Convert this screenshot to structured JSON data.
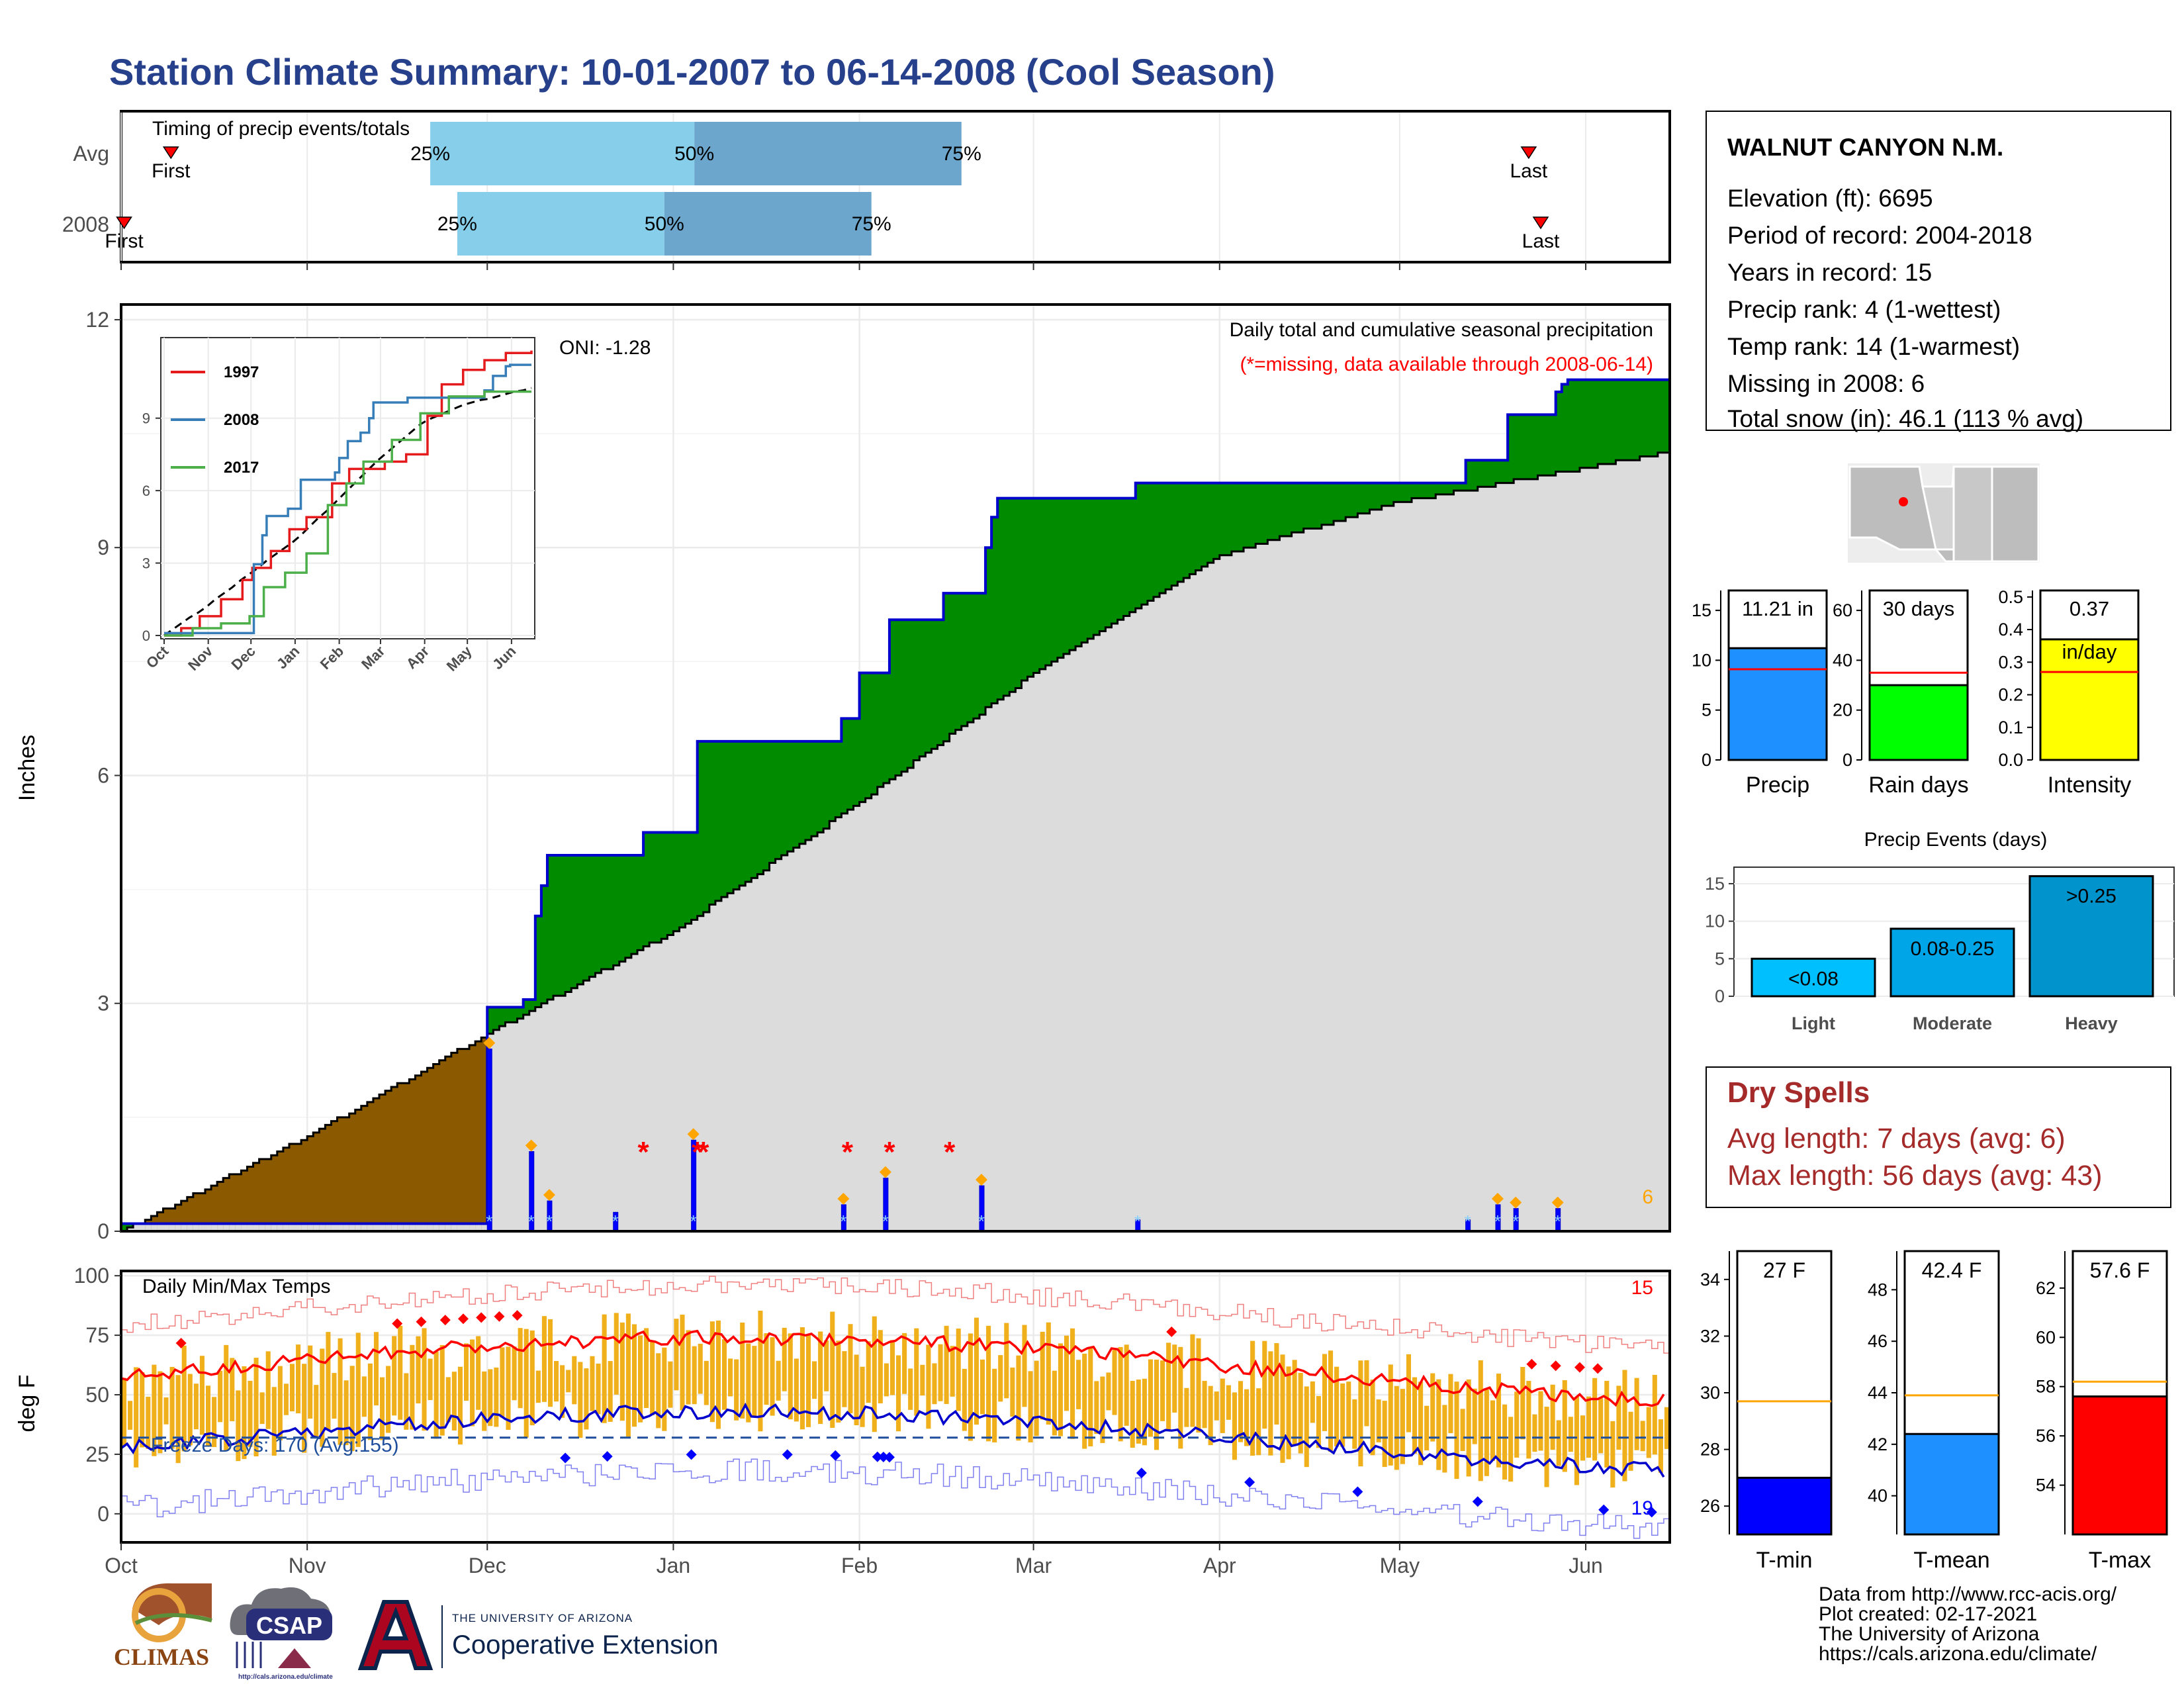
{
  "title": "Station Climate Summary: 10-01-2007 to 06-14-2008 (Cool Season)",
  "timing": {
    "caption": "Timing of precip events/totals",
    "rows": [
      {
        "label": "Avg",
        "first_label": "First",
        "last_label": "Last",
        "first": 8.3,
        "last": 234.5,
        "p25": 51.5,
        "p50": 95.5,
        "p75": 140.0,
        "p25_label": "25%",
        "p50_label": "50%",
        "p75_label": "75%"
      },
      {
        "label": "2008",
        "first_label": "First",
        "last_label": "Last",
        "first": 0.5,
        "last": 236.5,
        "p25": 56.0,
        "p50": 90.5,
        "p75": 125.0,
        "p25_label": "25%",
        "p50_label": "50%",
        "p75_label": "75%"
      }
    ]
  },
  "precip_panel": {
    "ylabel": "Inches",
    "yticks": [
      "0",
      "3",
      "6",
      "9",
      "12"
    ],
    "caption": "Daily total and cumulative seasonal precipitation",
    "missing_note": "(*=missing, data available through 2008-06-14)",
    "oni": "ONI: -1.28",
    "missing_count": "6",
    "colors": {
      "current": "#0000CD",
      "surplus": "#008B00",
      "deficit": "#8B5A00",
      "normal": "#DCDCDC"
    }
  },
  "inset": {
    "legend": [
      "1997",
      "2008",
      "2017"
    ],
    "colors": [
      "#E41A1C",
      "#377EB8",
      "#4DAF4A"
    ],
    "yticks": [
      "0",
      "3",
      "6",
      "9"
    ],
    "xticks": [
      "Oct",
      "Nov",
      "Dec",
      "Jan",
      "Feb",
      "Mar",
      "Apr",
      "May",
      "Jun"
    ]
  },
  "temp_panel": {
    "ylabel": "deg F",
    "caption": "Daily Min/Max Temps",
    "freeze": "Freeze Days: 170 (Avg:155)",
    "yticks": [
      "0",
      "25",
      "50",
      "75",
      "100"
    ],
    "record_high_count": "15",
    "record_low_count": "19"
  },
  "months": [
    "Oct",
    "Nov",
    "Dec",
    "Jan",
    "Feb",
    "Mar",
    "Apr",
    "May",
    "Jun"
  ],
  "station": {
    "name": "WALNUT CANYON N.M.",
    "lines": [
      "Elevation (ft): 6695",
      "Period of record: 2004-2018",
      "Years in record: 15",
      "Precip rank: 4 (1-wettest)",
      "Temp rank: 14 (1-warmest)",
      "Missing in 2008: 6",
      "Total snow (in): 46.1 (113 % avg)"
    ]
  },
  "summary_bars": [
    {
      "label": "Precip",
      "value_label": "11.21 in",
      "value": 11.21,
      "avg": 9.1,
      "ymax": 17,
      "yticks": [
        "0",
        "5",
        "10",
        "15"
      ],
      "color": "#1E90FF"
    },
    {
      "label": "Rain days",
      "value_label": "30 days",
      "value": 30,
      "avg": 35,
      "ymax": 68,
      "yticks": [
        "0",
        "20",
        "40",
        "60"
      ],
      "color": "#00FF00"
    },
    {
      "label": "Intensity",
      "value_label": "0.37",
      "value_label2": "in/day",
      "value": 0.37,
      "avg": 0.27,
      "ymax": 0.52,
      "yticks": [
        "0.0",
        "0.1",
        "0.2",
        "0.3",
        "0.4",
        "0.5"
      ],
      "color": "#FFFF00"
    }
  ],
  "precip_events": {
    "title": "Precip Events (days)",
    "yticks": [
      "0",
      "5",
      "10",
      "15"
    ],
    "bars": [
      {
        "label": "Light",
        "value_label": "<0.08",
        "value": 5,
        "color": "#00BFFF"
      },
      {
        "label": "Moderate",
        "value_label": "0.08-0.25",
        "value": 9,
        "color": "#00A5E8"
      },
      {
        "label": "Heavy",
        "value_label": ">0.25",
        "value": 16,
        "color": "#0093CC"
      }
    ]
  },
  "dry_spells": {
    "title": "Dry Spells",
    "avg_line": "Avg length: 7 days (avg: 6)",
    "max_line": "Max length: 56 days (avg: 43)",
    "color": "#A52A2A"
  },
  "temp_bars": [
    {
      "label": "T-min",
      "value_label": "27 F",
      "value": 27,
      "avg": 29.7,
      "ymin": 25,
      "ymax": 35,
      "yticks": [
        "26",
        "28",
        "30",
        "32",
        "34"
      ],
      "color": "#0000FF"
    },
    {
      "label": "T-mean",
      "value_label": "42.4 F",
      "value": 42.4,
      "avg": 43.9,
      "ymin": 38.5,
      "ymax": 49.5,
      "yticks": [
        "40",
        "42",
        "44",
        "46",
        "48"
      ],
      "color": "#1E90FF"
    },
    {
      "label": "T-max",
      "value_label": "57.6 F",
      "value": 57.6,
      "avg": 58.2,
      "ymin": 52,
      "ymax": 63.5,
      "yticks": [
        "54",
        "56",
        "58",
        "60",
        "62"
      ],
      "color": "#FF0000"
    }
  ],
  "footer": {
    "lines": [
      "Data from http://www.rcc-acis.org/",
      "Plot created: 02-17-2021",
      "The University of Arizona",
      "https://cals.arizona.edu/climate/"
    ],
    "logo_climas": "CLIMAS",
    "logo_csap": "CSAP",
    "logo_csap_url": "http://cals.arizona.edu/climate",
    "ua_line1": "THE UNIVERSITY OF ARIZONA",
    "ua_line2": "Cooperative Extension"
  },
  "chart_data": {
    "type": "area",
    "title": "Daily total and cumulative seasonal precipitation",
    "ylabel": "Inches",
    "ylim": [
      0,
      12.2
    ],
    "x_dates_cumulative_current": [
      "2007-10-01",
      "2007-11-30",
      "2007-12-01",
      "2007-12-07",
      "2007-12-09",
      "2007-12-10",
      "2007-12-11",
      "2007-12-20",
      "2007-12-27",
      "2008-01-04",
      "2008-01-05",
      "2008-01-18",
      "2008-01-29",
      "2008-02-01",
      "2008-02-04",
      "2008-02-06",
      "2008-02-08",
      "2008-02-15",
      "2008-02-21",
      "2008-02-22",
      "2008-02-23",
      "2008-02-24",
      "2008-03-18",
      "2008-05-12",
      "2008-05-19",
      "2008-05-27",
      "2008-05-28",
      "2008-05-29",
      "2008-06-14"
    ],
    "cumulative_current": [
      0.1,
      0.1,
      2.95,
      3.05,
      4.15,
      4.55,
      4.95,
      4.95,
      5.25,
      5.25,
      6.45,
      6.45,
      6.75,
      7.35,
      7.35,
      8.05,
      8.05,
      8.4,
      8.4,
      9.0,
      9.4,
      9.65,
      9.85,
      10.15,
      10.75,
      11.05,
      11.15,
      11.21,
      11.21
    ],
    "x_dates_normal": [
      "2007-10-01",
      "2007-11-01",
      "2007-12-01",
      "2008-01-01",
      "2008-02-01",
      "2008-03-01",
      "2008-04-01",
      "2008-05-01",
      "2008-06-01",
      "2008-06-14"
    ],
    "cumulative_normal": [
      0.0,
      1.25,
      2.6,
      3.95,
      5.65,
      7.35,
      8.9,
      9.6,
      10.05,
      10.25
    ],
    "daily_precip": [
      {
        "date": "2007-12-01",
        "value": 2.4
      },
      {
        "date": "2007-12-08",
        "value": 1.05
      },
      {
        "date": "2007-12-11",
        "value": 0.4
      },
      {
        "date": "2007-12-22",
        "value": 0.25
      },
      {
        "date": "2008-01-04",
        "value": 1.2
      },
      {
        "date": "2008-01-29",
        "value": 0.35
      },
      {
        "date": "2008-02-05",
        "value": 0.7
      },
      {
        "date": "2008-02-21",
        "value": 0.6
      },
      {
        "date": "2008-03-18",
        "value": 0.15
      },
      {
        "date": "2008-05-12",
        "value": 0.15
      },
      {
        "date": "2008-05-17",
        "value": 0.35
      },
      {
        "date": "2008-05-20",
        "value": 0.3
      },
      {
        "date": "2008-05-27",
        "value": 0.3
      }
    ],
    "missing_dates": [
      "2007-12-27",
      "2008-01-05",
      "2008-01-06",
      "2008-01-30",
      "2008-02-06",
      "2008-02-16"
    ]
  }
}
